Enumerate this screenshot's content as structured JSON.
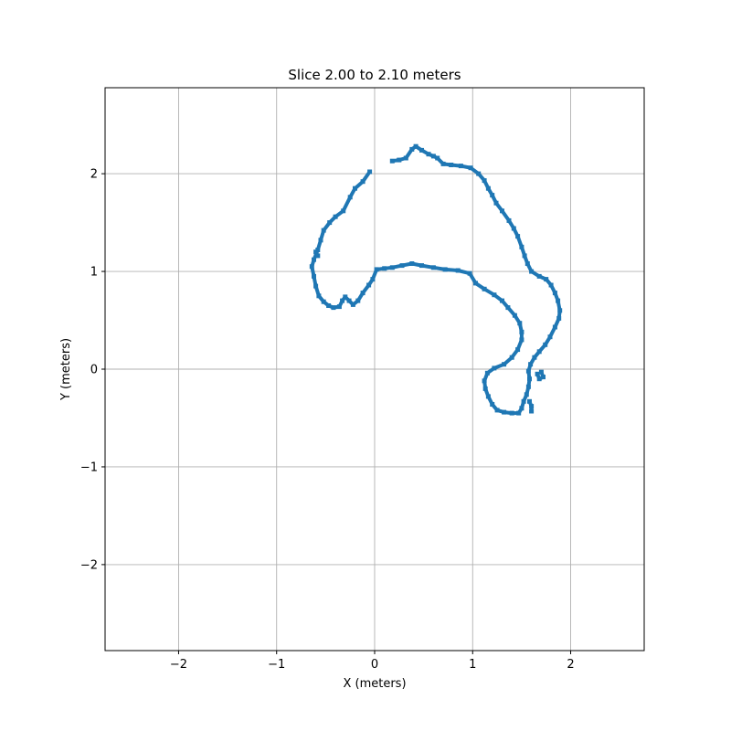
{
  "chart_data": {
    "type": "scatter",
    "title": "Slice 2.00 to 2.10 meters",
    "xlabel": "X (meters)",
    "ylabel": "Y (meters)",
    "xlim": [
      -2.75,
      2.75
    ],
    "ylim": [
      -2.88,
      2.88
    ],
    "xticks": [
      -2,
      -1,
      0,
      1,
      2
    ],
    "yticks": [
      -2,
      -1,
      0,
      1,
      2
    ],
    "xtick_labels": [
      "−2",
      "−1",
      "0",
      "1",
      "2"
    ],
    "ytick_labels": [
      "−2",
      "−1",
      "0",
      "1",
      "2"
    ],
    "grid": true,
    "color": "#1f77b4",
    "series": [
      {
        "points": [
          [
            -0.05,
            2.02
          ],
          [
            -0.12,
            1.92
          ],
          [
            -0.2,
            1.85
          ],
          [
            -0.25,
            1.76
          ],
          [
            -0.32,
            1.62
          ],
          [
            -0.4,
            1.56
          ],
          [
            -0.46,
            1.5
          ],
          [
            -0.52,
            1.42
          ],
          [
            -0.55,
            1.32
          ],
          [
            -0.58,
            1.22
          ],
          [
            -0.62,
            1.12
          ],
          [
            -0.64,
            1.05
          ],
          [
            -0.62,
            0.95
          ],
          [
            -0.6,
            0.85
          ],
          [
            -0.57,
            0.75
          ],
          [
            -0.52,
            0.69
          ],
          [
            -0.47,
            0.65
          ],
          [
            -0.42,
            0.63
          ],
          [
            -0.36,
            0.64
          ],
          [
            -0.33,
            0.7
          ],
          [
            -0.3,
            0.74
          ],
          [
            -0.26,
            0.7
          ],
          [
            -0.22,
            0.66
          ],
          [
            -0.17,
            0.7
          ],
          [
            -0.12,
            0.78
          ],
          [
            -0.06,
            0.86
          ],
          [
            -0.02,
            0.92
          ],
          [
            0.02,
            1.02
          ],
          [
            0.1,
            1.03
          ],
          [
            0.18,
            1.04
          ],
          [
            0.28,
            1.06
          ],
          [
            0.38,
            1.08
          ],
          [
            0.48,
            1.06
          ],
          [
            0.6,
            1.04
          ],
          [
            0.72,
            1.02
          ],
          [
            0.85,
            1.01
          ],
          [
            0.97,
            0.98
          ],
          [
            1.03,
            0.88
          ],
          [
            1.12,
            0.82
          ],
          [
            1.22,
            0.76
          ],
          [
            1.3,
            0.7
          ],
          [
            1.36,
            0.63
          ],
          [
            1.43,
            0.55
          ],
          [
            1.48,
            0.47
          ],
          [
            1.5,
            0.38
          ],
          [
            1.5,
            0.3
          ],
          [
            1.46,
            0.2
          ],
          [
            1.4,
            0.12
          ],
          [
            1.32,
            0.05
          ],
          [
            1.22,
            0.01
          ],
          [
            1.15,
            -0.04
          ],
          [
            1.12,
            -0.12
          ],
          [
            1.13,
            -0.2
          ],
          [
            1.16,
            -0.28
          ],
          [
            1.2,
            -0.36
          ],
          [
            1.25,
            -0.42
          ],
          [
            1.32,
            -0.44
          ],
          [
            1.4,
            -0.45
          ],
          [
            1.47,
            -0.45
          ],
          [
            1.5,
            -0.4
          ],
          [
            1.52,
            -0.33
          ],
          [
            1.55,
            -0.26
          ],
          [
            1.57,
            -0.18
          ],
          [
            1.58,
            -0.1
          ],
          [
            1.57,
            -0.02
          ],
          [
            1.59,
            0.05
          ],
          [
            1.63,
            0.12
          ],
          [
            1.68,
            0.18
          ],
          [
            1.74,
            0.25
          ],
          [
            1.79,
            0.33
          ],
          [
            1.84,
            0.43
          ],
          [
            1.88,
            0.52
          ],
          [
            1.89,
            0.6
          ],
          [
            1.87,
            0.7
          ],
          [
            1.84,
            0.78
          ],
          [
            1.8,
            0.86
          ],
          [
            1.75,
            0.92
          ],
          [
            1.68,
            0.95
          ],
          [
            1.6,
            1.0
          ],
          [
            1.56,
            1.08
          ],
          [
            1.53,
            1.16
          ],
          [
            1.5,
            1.25
          ],
          [
            1.46,
            1.36
          ],
          [
            1.42,
            1.44
          ],
          [
            1.37,
            1.52
          ],
          [
            1.3,
            1.62
          ],
          [
            1.24,
            1.7
          ],
          [
            1.2,
            1.78
          ],
          [
            1.16,
            1.85
          ],
          [
            1.12,
            1.93
          ],
          [
            1.06,
            2.0
          ],
          [
            0.98,
            2.06
          ],
          [
            0.88,
            2.08
          ],
          [
            0.78,
            2.09
          ],
          [
            0.7,
            2.1
          ],
          [
            0.64,
            2.16
          ],
          [
            0.6,
            2.18
          ],
          [
            0.55,
            2.2
          ],
          [
            0.48,
            2.24
          ],
          [
            0.42,
            2.28
          ],
          [
            0.38,
            2.25
          ],
          [
            0.32,
            2.16
          ],
          [
            0.25,
            2.14
          ],
          [
            0.18,
            2.13
          ]
        ]
      },
      {
        "points": [
          [
            1.66,
            -0.05
          ],
          [
            1.68,
            -0.1
          ],
          [
            1.72,
            -0.08
          ],
          [
            1.7,
            -0.03
          ]
        ]
      },
      {
        "points": [
          [
            1.58,
            -0.33
          ],
          [
            1.6,
            -0.38
          ],
          [
            1.6,
            -0.43
          ]
        ]
      },
      {
        "points": [
          [
            -0.6,
            1.2
          ],
          [
            -0.58,
            1.16
          ]
        ]
      }
    ]
  }
}
